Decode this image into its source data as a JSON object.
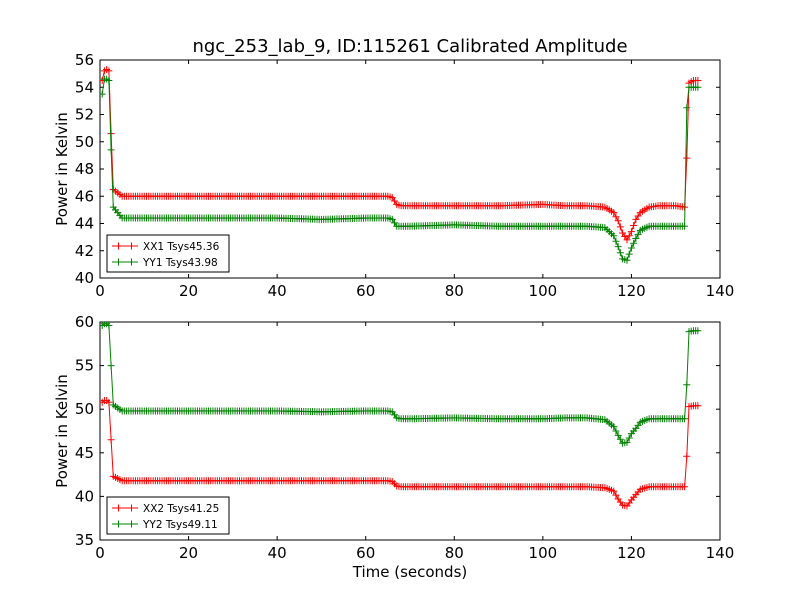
{
  "title": "ngc_253_lab_9, ID:115261 Calibrated Amplitude",
  "chart_data": [
    {
      "type": "line",
      "ylabel": "Power in Kelvin",
      "xlabel": "",
      "xlim": [
        0,
        140
      ],
      "ylim": [
        40,
        56
      ],
      "xticks": [
        0,
        20,
        40,
        60,
        80,
        100,
        120,
        140
      ],
      "yticks": [
        40,
        42,
        44,
        46,
        48,
        50,
        52,
        54,
        56
      ],
      "legend_position": "lower-left",
      "series": [
        {
          "name": "XX1 Tsys45.36",
          "color": "#ff0000",
          "x": [
            0.5,
            1,
            1.5,
            2,
            2.5,
            3,
            5,
            10,
            20,
            30,
            40,
            50,
            60,
            65,
            66,
            67,
            68,
            70,
            80,
            90,
            100,
            105,
            110,
            114,
            116,
            117,
            118,
            119,
            120,
            121,
            122,
            124,
            126,
            130,
            132,
            132.5,
            133,
            134,
            135
          ],
          "y": [
            54.5,
            55.2,
            55.3,
            55.2,
            50.6,
            46.5,
            46.0,
            46.0,
            46.0,
            46.0,
            46.0,
            46.0,
            46.0,
            46.0,
            45.9,
            45.4,
            45.3,
            45.3,
            45.3,
            45.3,
            45.4,
            45.3,
            45.3,
            45.2,
            44.8,
            44.2,
            43.3,
            42.8,
            43.4,
            44.3,
            44.8,
            45.2,
            45.3,
            45.3,
            45.2,
            48.8,
            54.3,
            54.5,
            54.5
          ]
        },
        {
          "name": "YY1 Tsys43.98",
          "color": "#008000",
          "x": [
            0.5,
            1,
            1.5,
            2,
            2.5,
            3,
            5,
            10,
            20,
            30,
            40,
            50,
            60,
            65,
            66,
            67,
            68,
            70,
            80,
            90,
            100,
            105,
            110,
            114,
            116,
            117,
            118,
            119,
            120,
            121,
            122,
            124,
            126,
            130,
            132,
            132.5,
            133,
            134,
            135
          ],
          "y": [
            53.5,
            54.6,
            54.6,
            54.5,
            49.4,
            45.2,
            44.4,
            44.4,
            44.4,
            44.4,
            44.4,
            44.3,
            44.4,
            44.4,
            44.3,
            43.8,
            43.8,
            43.8,
            43.9,
            43.8,
            43.8,
            43.8,
            43.8,
            43.7,
            43.1,
            42.3,
            41.4,
            41.3,
            42.2,
            42.9,
            43.5,
            43.8,
            43.8,
            43.8,
            43.8,
            52.5,
            54.0,
            54.0,
            54.0
          ]
        }
      ]
    },
    {
      "type": "line",
      "ylabel": "Power in Kelvin",
      "xlabel": "Time (seconds)",
      "xlim": [
        0,
        140
      ],
      "ylim": [
        35,
        60
      ],
      "xticks": [
        0,
        20,
        40,
        60,
        80,
        100,
        120,
        140
      ],
      "yticks": [
        35,
        40,
        45,
        50,
        55,
        60
      ],
      "legend_position": "lower-left",
      "series": [
        {
          "name": "XX2 Tsys41.25",
          "color": "#ff0000",
          "x": [
            0.5,
            1,
            1.5,
            2,
            2.5,
            3,
            5,
            10,
            20,
            30,
            40,
            50,
            60,
            65,
            66,
            67,
            68,
            70,
            80,
            90,
            100,
            105,
            110,
            114,
            116,
            117,
            118,
            119,
            120,
            121,
            122,
            124,
            126,
            130,
            132,
            132.5,
            133,
            134,
            135
          ],
          "y": [
            50.8,
            51.0,
            51.0,
            50.8,
            46.5,
            42.3,
            41.8,
            41.8,
            41.8,
            41.8,
            41.8,
            41.8,
            41.8,
            41.8,
            41.7,
            41.2,
            41.1,
            41.1,
            41.1,
            41.1,
            41.1,
            41.1,
            41.1,
            41.0,
            40.6,
            39.7,
            39.0,
            38.9,
            39.6,
            40.2,
            40.8,
            41.1,
            41.1,
            41.1,
            41.1,
            44.6,
            50.3,
            50.4,
            50.4
          ]
        },
        {
          "name": "YY2 Tsys49.11",
          "color": "#008000",
          "x": [
            0.5,
            1,
            1.5,
            2,
            2.5,
            3,
            5,
            10,
            20,
            30,
            40,
            50,
            60,
            65,
            66,
            67,
            68,
            70,
            80,
            90,
            100,
            105,
            110,
            114,
            116,
            117,
            118,
            119,
            120,
            121,
            122,
            124,
            126,
            130,
            132,
            132.5,
            133,
            134,
            135
          ],
          "y": [
            59.6,
            59.8,
            59.8,
            59.6,
            55.0,
            50.5,
            49.8,
            49.8,
            49.8,
            49.8,
            49.8,
            49.7,
            49.8,
            49.8,
            49.7,
            49.0,
            48.9,
            48.9,
            49.0,
            48.9,
            48.9,
            49.0,
            49.0,
            48.8,
            48.0,
            47.0,
            46.1,
            46.2,
            47.2,
            47.8,
            48.5,
            48.9,
            48.9,
            48.9,
            48.9,
            52.8,
            58.9,
            59.0,
            59.0
          ]
        }
      ]
    }
  ]
}
